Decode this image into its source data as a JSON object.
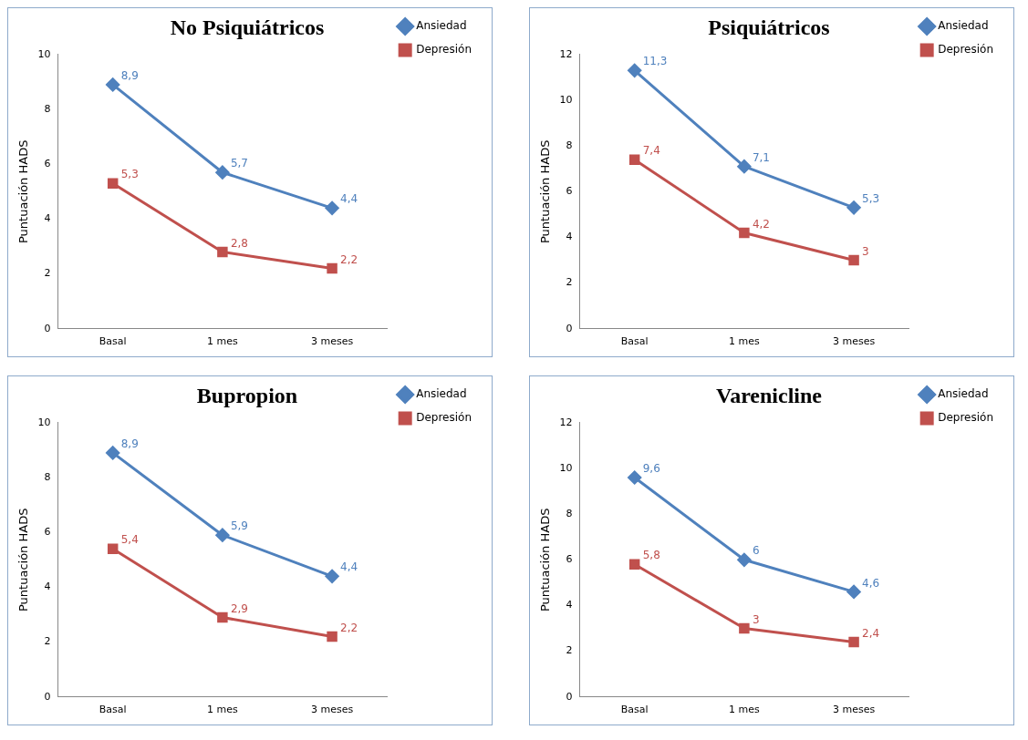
{
  "chart_data": [
    {
      "type": "line",
      "title": "No Psiquiátricos",
      "ylabel": "Puntuación HADS",
      "categories": [
        "Basal",
        "1 mes",
        "3 meses"
      ],
      "ylim": [
        0,
        10
      ],
      "yticks": [
        0,
        2,
        4,
        6,
        8,
        10
      ],
      "grid": false,
      "legend": "top right",
      "series": [
        {
          "name": "Ansiedad",
          "color": "#4f81bd",
          "marker": "diamond",
          "values": [
            8.9,
            5.7,
            4.4
          ],
          "value_labels": [
            "8,9",
            "5,7",
            "4,4"
          ]
        },
        {
          "name": "Depresión",
          "color": "#c0504d",
          "marker": "square",
          "values": [
            5.3,
            2.8,
            2.2
          ],
          "value_labels": [
            "5,3",
            "2,8",
            "2,2"
          ]
        }
      ]
    },
    {
      "type": "line",
      "title": "Psiquiátricos",
      "ylabel": "Puntuación HADS",
      "categories": [
        "Basal",
        "1 mes",
        "3 meses"
      ],
      "ylim": [
        0,
        12
      ],
      "yticks": [
        0,
        2,
        4,
        6,
        8,
        10,
        12
      ],
      "grid": false,
      "legend": "top right",
      "series": [
        {
          "name": "Ansiedad",
          "color": "#4f81bd",
          "marker": "diamond",
          "values": [
            11.3,
            7.1,
            5.3
          ],
          "value_labels": [
            "11,3",
            "7,1",
            "5,3"
          ]
        },
        {
          "name": "Depresión",
          "color": "#c0504d",
          "marker": "square",
          "values": [
            7.4,
            4.2,
            3
          ],
          "value_labels": [
            "7,4",
            "4,2",
            "3"
          ]
        }
      ]
    },
    {
      "type": "line",
      "title": "Bupropion",
      "ylabel": "Puntuación HADS",
      "categories": [
        "Basal",
        "1 mes",
        "3 meses"
      ],
      "ylim": [
        0,
        10
      ],
      "yticks": [
        0,
        2,
        4,
        6,
        8,
        10
      ],
      "grid": false,
      "legend": "top right",
      "series": [
        {
          "name": "Ansiedad",
          "color": "#4f81bd",
          "marker": "diamond",
          "values": [
            8.9,
            5.9,
            4.4
          ],
          "value_labels": [
            "8,9",
            "5,9",
            "4,4"
          ]
        },
        {
          "name": "Depresión",
          "color": "#c0504d",
          "marker": "square",
          "values": [
            5.4,
            2.9,
            2.2
          ],
          "value_labels": [
            "5,4",
            "2,9",
            "2,2"
          ]
        }
      ]
    },
    {
      "type": "line",
      "title": "Varenicline",
      "ylabel": "Puntuación HADS",
      "categories": [
        "Basal",
        "1 mes",
        "3 meses"
      ],
      "ylim": [
        0,
        12
      ],
      "yticks": [
        0,
        2,
        4,
        6,
        8,
        10,
        12
      ],
      "grid": false,
      "legend": "top right",
      "series": [
        {
          "name": "Ansiedad",
          "color": "#4f81bd",
          "marker": "diamond",
          "values": [
            9.6,
            6,
            4.6
          ],
          "value_labels": [
            "9,6",
            "6",
            "4,6"
          ]
        },
        {
          "name": "Depresión",
          "color": "#c0504d",
          "marker": "square",
          "values": [
            5.8,
            3,
            2.4
          ],
          "value_labels": [
            "5,8",
            "3",
            "2,4"
          ]
        }
      ]
    }
  ]
}
